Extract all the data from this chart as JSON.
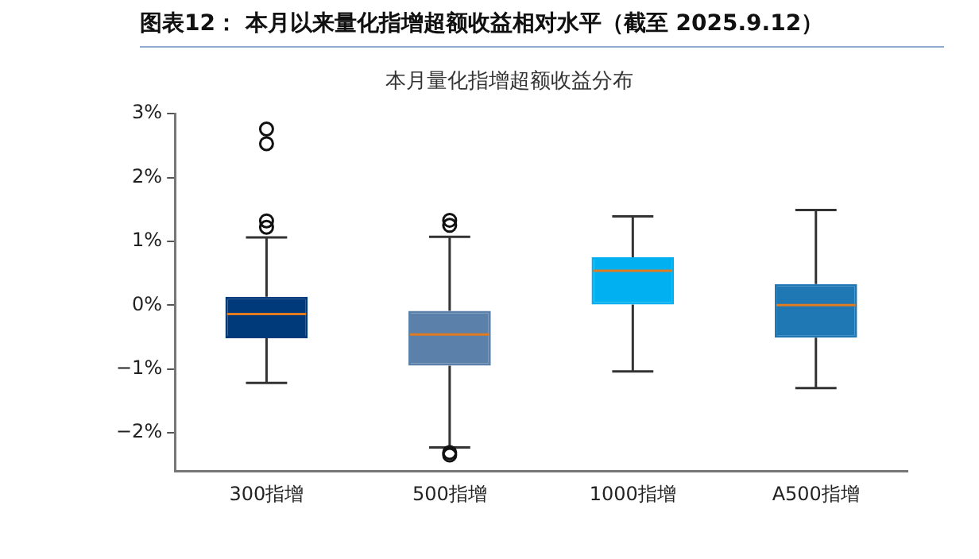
{
  "chart_data": {
    "type": "box",
    "title": "图表12： 本月以来量化指增超额收益相对水平（截至 2025.9.12）",
    "subtitle": "本月量化指增超额收益分布",
    "categories": [
      "300指增",
      "500指增",
      "1000指增",
      "A500指增"
    ],
    "colors": [
      "#003a7a",
      "#5b80aa",
      "#00b0f0",
      "#1f77b4"
    ],
    "boxes": [
      {
        "low": -1.22,
        "q1": -0.52,
        "median": -0.14,
        "q3": 0.13,
        "high": 1.06,
        "outliers": [
          1.22,
          1.32,
          2.53,
          2.76
        ]
      },
      {
        "low": -2.23,
        "q1": -0.95,
        "median": -0.46,
        "q3": -0.09,
        "high": 1.07,
        "outliers": [
          1.25,
          1.33,
          -2.31,
          -2.35
        ]
      },
      {
        "low": -1.04,
        "q1": 0.01,
        "median": 0.54,
        "q3": 0.75,
        "high": 1.39
      },
      {
        "low": -1.3,
        "q1": -0.51,
        "median": 0.0,
        "q3": 0.33,
        "high": 1.49
      }
    ],
    "ylim": [
      -2.6,
      3
    ],
    "yticks": [
      {
        "value": -2,
        "label": "−2%"
      },
      {
        "value": -1,
        "label": "−1%"
      },
      {
        "value": 0,
        "label": "0%"
      },
      {
        "value": 1,
        "label": "1%"
      },
      {
        "value": 2,
        "label": "2%"
      },
      {
        "value": 3,
        "label": "3%"
      }
    ],
    "grid": false,
    "legend": false
  }
}
